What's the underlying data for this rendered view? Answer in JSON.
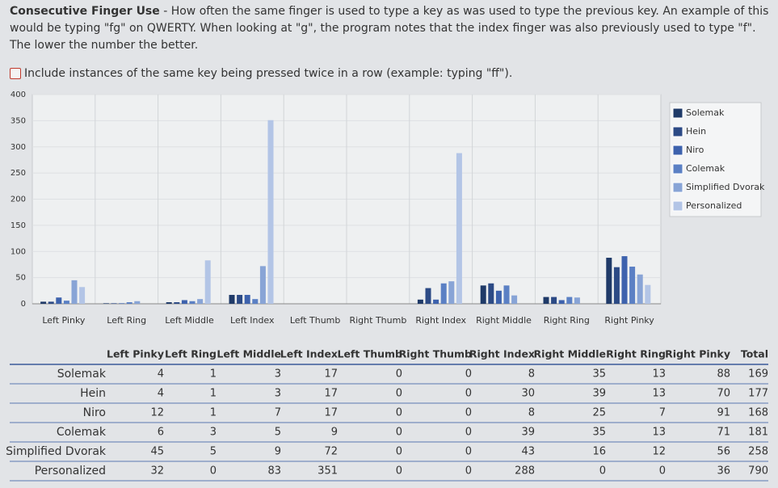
{
  "description": {
    "title": "Consecutive Finger Use",
    "text": " - How often the same finger is used to type a key as was used to type the previous key. An example of this would be typing \"fg\" on QWERTY. When looking at \"g\", the program notes that the index finger was also previously used to type \"f\". The lower the number the better."
  },
  "checkbox": {
    "label": "Include instances of the same key being pressed twice in a row (example: typing \"ff\").",
    "checked": false
  },
  "chart_data": {
    "type": "bar",
    "categories": [
      "Left Pinky",
      "Left Ring",
      "Left Middle",
      "Left Index",
      "Left Thumb",
      "Right Thumb",
      "Right Index",
      "Right Middle",
      "Right Ring",
      "Right Pinky"
    ],
    "series": [
      {
        "name": "Solemak",
        "color": "#1f3a68",
        "values": [
          4,
          1,
          3,
          17,
          0,
          0,
          8,
          35,
          13,
          88
        ]
      },
      {
        "name": "Hein",
        "color": "#2c4a85",
        "values": [
          4,
          1,
          3,
          17,
          0,
          0,
          30,
          39,
          13,
          70
        ]
      },
      {
        "name": "Niro",
        "color": "#3d62ad",
        "values": [
          12,
          1,
          7,
          17,
          0,
          0,
          8,
          25,
          7,
          91
        ]
      },
      {
        "name": "Colemak",
        "color": "#5b80c4",
        "values": [
          6,
          3,
          5,
          9,
          0,
          0,
          39,
          35,
          13,
          71
        ]
      },
      {
        "name": "Simplified Dvorak",
        "color": "#88a4d6",
        "values": [
          45,
          5,
          9,
          72,
          0,
          0,
          43,
          16,
          12,
          56
        ]
      },
      {
        "name": "Personalized",
        "color": "#b3c5e6",
        "values": [
          32,
          0,
          83,
          351,
          0,
          0,
          288,
          0,
          0,
          36
        ]
      }
    ],
    "ylim": [
      0,
      400
    ],
    "yticks": [
      0,
      50,
      100,
      150,
      200,
      250,
      300,
      350,
      400
    ],
    "grid": true,
    "legend": "right"
  },
  "table": {
    "columns": [
      "Left Pinky",
      "Left Ring",
      "Left Middle",
      "Left Index",
      "Left Thumb",
      "Right Thumb",
      "Right Index",
      "Right Middle",
      "Right Ring",
      "Right Pinky",
      "Total"
    ],
    "rows": [
      [
        "Solemak",
        4,
        1,
        3,
        17,
        0,
        0,
        8,
        35,
        13,
        88,
        169
      ],
      [
        "Hein",
        4,
        1,
        3,
        17,
        0,
        0,
        30,
        39,
        13,
        70,
        177
      ],
      [
        "Niro",
        12,
        1,
        7,
        17,
        0,
        0,
        8,
        25,
        7,
        91,
        168
      ],
      [
        "Colemak",
        6,
        3,
        5,
        9,
        0,
        0,
        39,
        35,
        13,
        71,
        181
      ],
      [
        "Simplified Dvorak",
        45,
        5,
        9,
        72,
        0,
        0,
        43,
        16,
        12,
        56,
        258
      ],
      [
        "Personalized",
        32,
        0,
        83,
        351,
        0,
        0,
        288,
        0,
        0,
        36,
        790
      ]
    ]
  }
}
